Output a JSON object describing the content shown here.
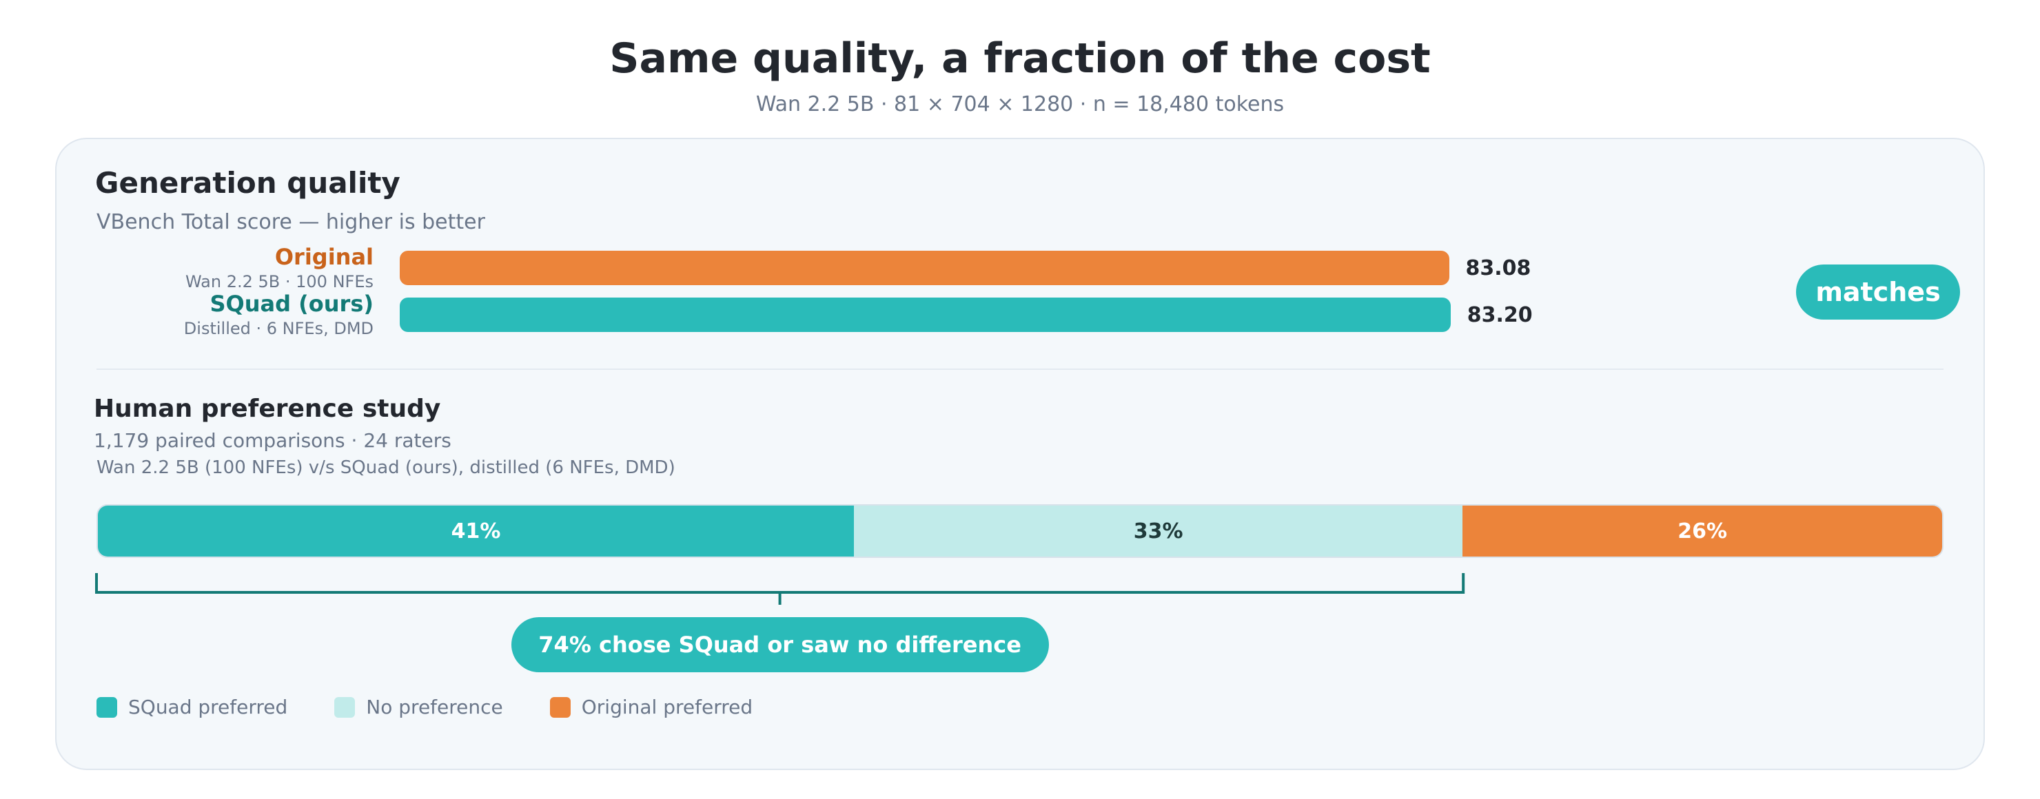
{
  "header": {
    "title": "Same quality, a fraction of the cost",
    "subtitle": "Wan 2.2 5B  ·  81 × 704 × 1280  ·  n = 18,480 tokens"
  },
  "colors": {
    "teal": "#2abbb9",
    "light_teal": "#c1ebea",
    "orange": "#ec843a",
    "dark_teal": "#137a76",
    "orange_text": "#c9631b"
  },
  "quality": {
    "title": "Generation quality",
    "subtitle": "VBench Total score  —  higher is better",
    "badge": "matches"
  },
  "preference": {
    "title": "Human preference study",
    "meta": "1,179 paired comparisons  ·  24 raters",
    "comparison": "Wan 2.2 5B (100 NFEs)  v/s  SQuad (ours), distilled (6 NFEs, DMD)",
    "callout": "74% chose SQuad or saw no difference"
  },
  "chart_data": [
    {
      "type": "bar",
      "orientation": "horizontal",
      "title": "Generation quality",
      "subtitle": "VBench Total score  —  higher is better",
      "categories": [
        "Original",
        "SQuad (ours)"
      ],
      "category_subtitles": [
        "Wan 2.2 5B · 100 NFEs",
        "Distilled · 6 NFEs, DMD"
      ],
      "values": [
        83.08,
        83.2
      ],
      "value_labels": [
        "83.08",
        "83.20"
      ],
      "xlim": [
        0,
        100
      ],
      "colors": [
        "#ec843a",
        "#2abbb9"
      ],
      "annotation": "matches"
    },
    {
      "type": "bar",
      "orientation": "horizontal",
      "stacked": true,
      "title": "Human preference study",
      "series": [
        {
          "name": "SQuad preferred",
          "values": [
            41
          ],
          "label": "41%",
          "color": "#2abbb9"
        },
        {
          "name": "No preference",
          "values": [
            33
          ],
          "label": "33%",
          "color": "#c1ebea"
        },
        {
          "name": "Original preferred",
          "values": [
            26
          ],
          "label": "26%",
          "color": "#ec843a"
        }
      ],
      "unit": "%",
      "annotation": "74% chose SQuad or saw no difference",
      "legend_position": "bottom-left"
    }
  ]
}
